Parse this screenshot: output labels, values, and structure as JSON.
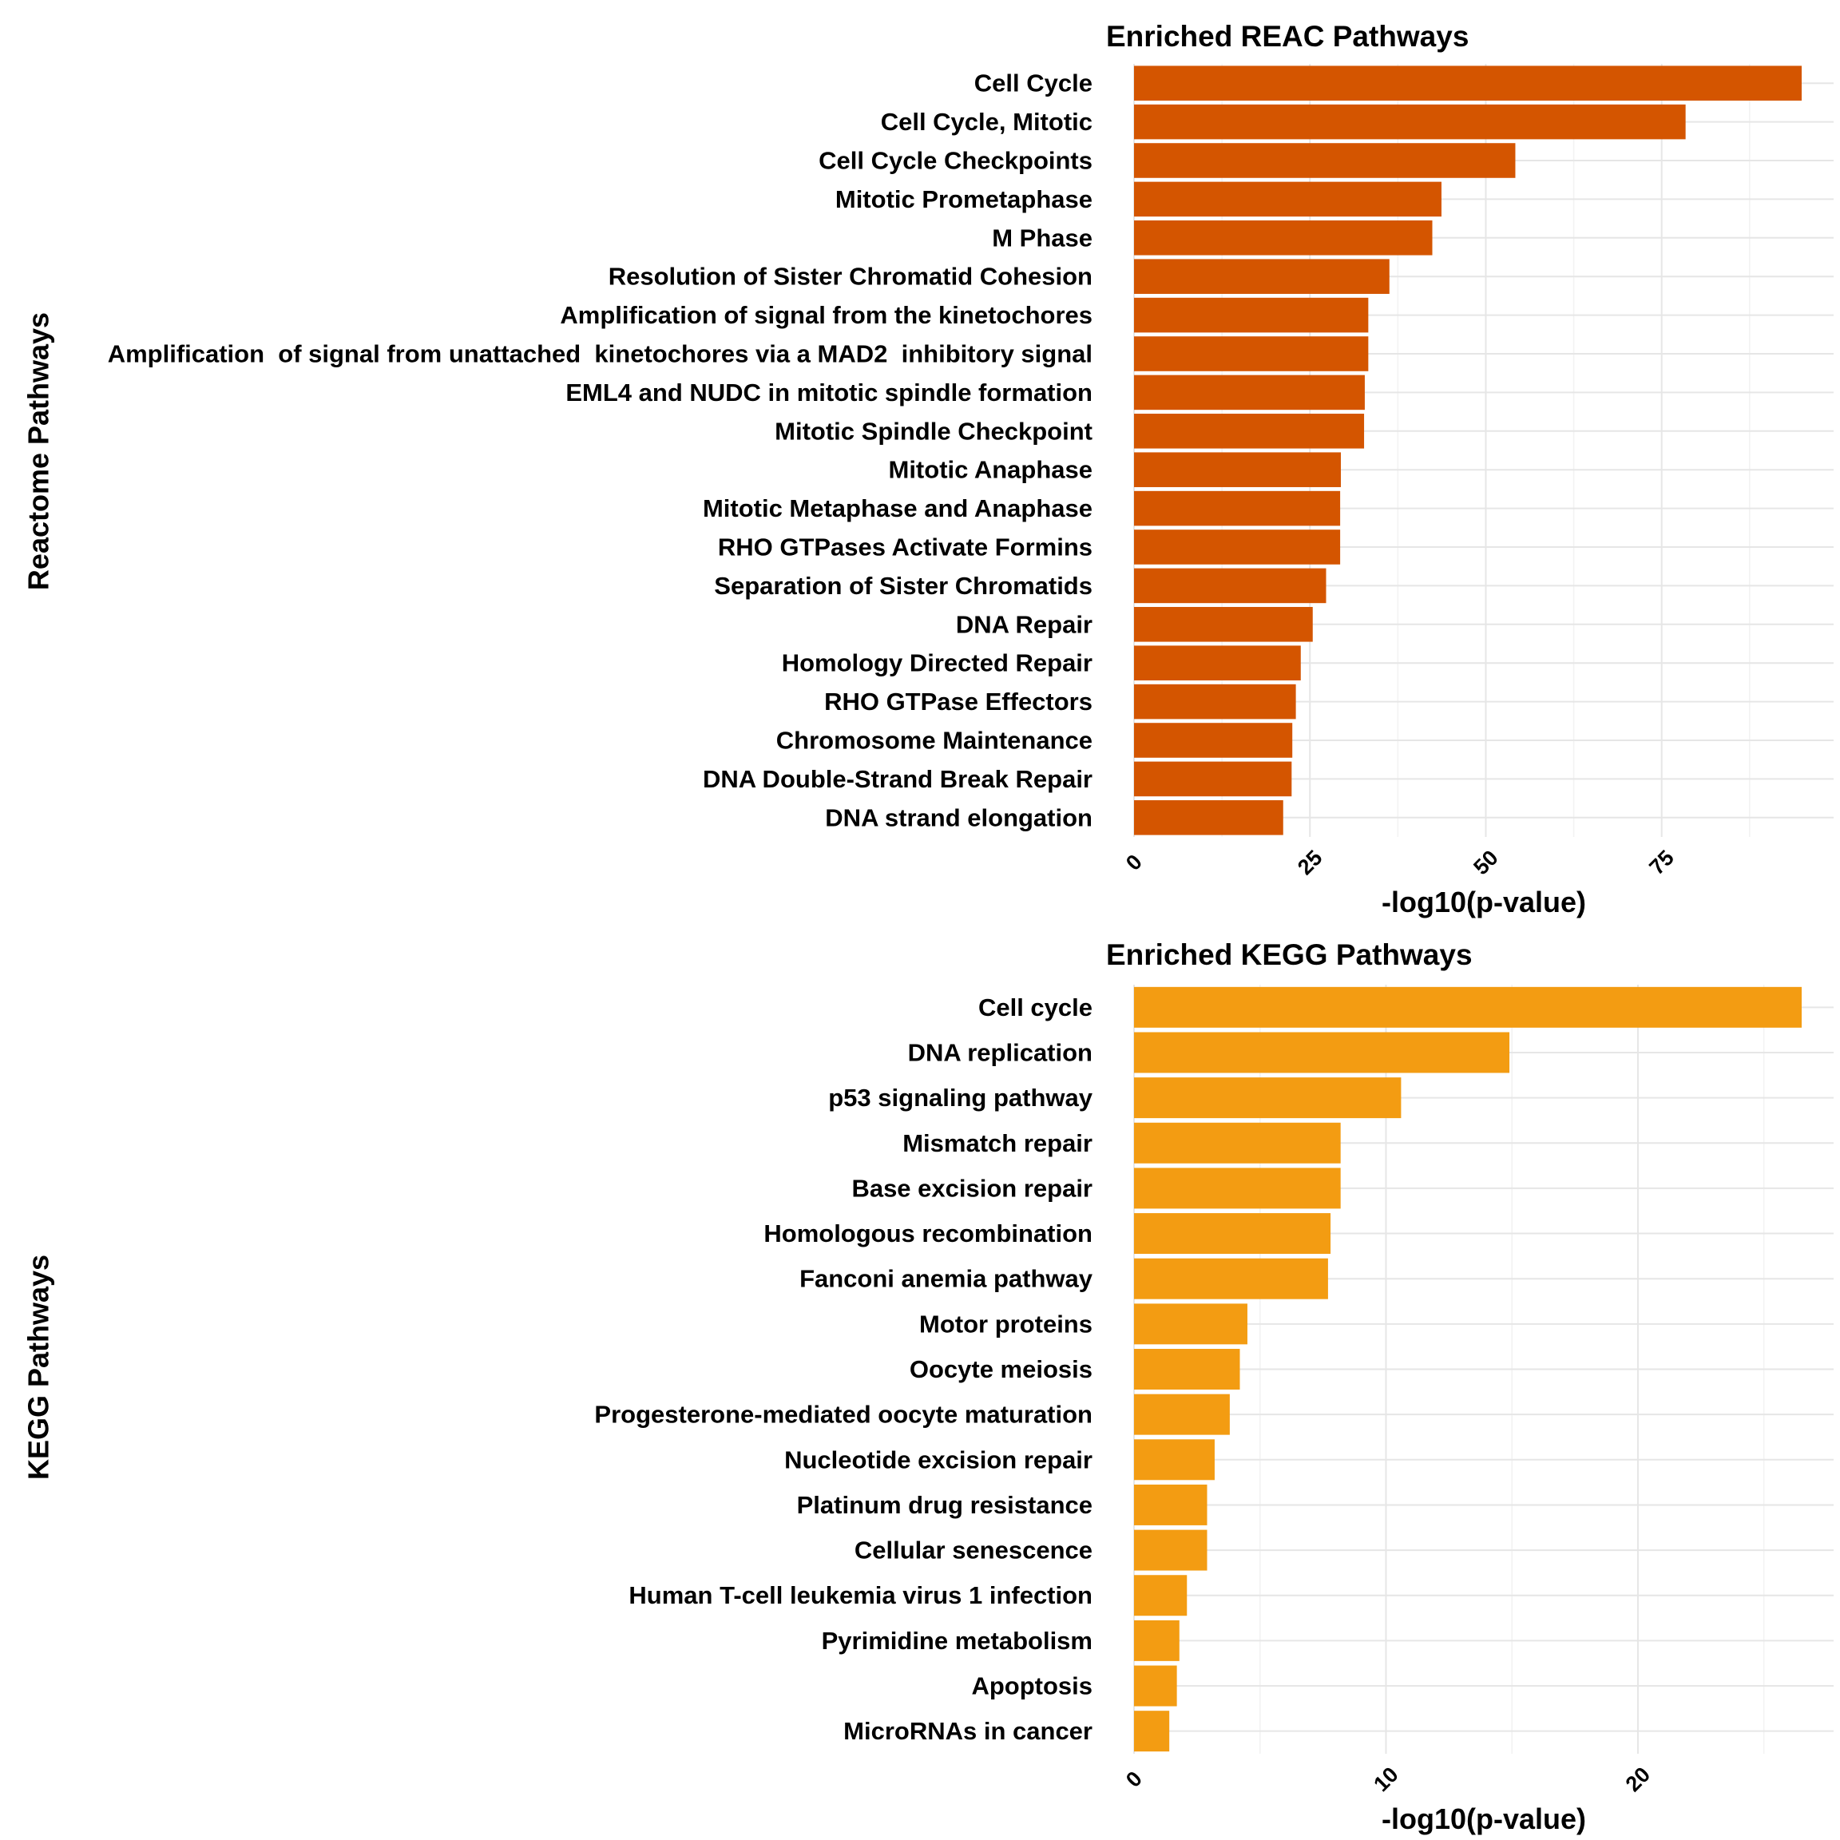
{
  "chart_data": [
    {
      "type": "bar",
      "orientation": "horizontal",
      "title": "Enriched REAC Pathways",
      "xlabel": "-log10(p-value)",
      "ylabel": "Reactome Pathways",
      "bar_color": "#D45500",
      "xlim": [
        0,
        96
      ],
      "xticks": [
        0,
        25,
        50,
        75
      ],
      "grid": true,
      "categories": [
        "Cell Cycle",
        "Cell Cycle, Mitotic",
        "Cell Cycle Checkpoints",
        "Mitotic Prometaphase",
        "M Phase",
        "Resolution of Sister Chromatid Cohesion",
        "Amplification of signal from the kinetochores",
        "Amplification  of signal from unattached  kinetochores via a MAD2  inhibitory signal",
        "EML4 and NUDC in mitotic spindle formation",
        "Mitotic Spindle Checkpoint",
        "Mitotic Anaphase",
        "Mitotic Metaphase and Anaphase",
        "RHO GTPases Activate Formins",
        "Separation of Sister Chromatids",
        "DNA Repair",
        "Homology Directed Repair",
        "RHO GTPase Effectors",
        "Chromosome Maintenance",
        "DNA Double-Strand Break Repair",
        "DNA strand elongation"
      ],
      "values": [
        94.9,
        78.4,
        54.2,
        43.7,
        42.4,
        36.3,
        33.3,
        33.3,
        32.8,
        32.7,
        29.4,
        29.3,
        29.3,
        27.3,
        25.4,
        23.7,
        23.0,
        22.5,
        22.4,
        21.2
      ]
    },
    {
      "type": "bar",
      "orientation": "horizontal",
      "title": "Enriched KEGG Pathways",
      "xlabel": "-log10(p-value)",
      "ylabel": "KEGG Pathways",
      "bar_color": "#F39C12",
      "xlim": [
        0,
        27.5
      ],
      "xticks": [
        0,
        10,
        20
      ],
      "grid": true,
      "categories": [
        "Cell cycle",
        "DNA replication",
        "p53 signaling pathway",
        "Mismatch repair",
        "Base excision repair",
        "Homologous recombination",
        "Fanconi anemia pathway",
        "Motor proteins",
        "Oocyte meiosis",
        "Progesterone-mediated oocyte maturation",
        "Nucleotide excision repair",
        "Platinum drug resistance",
        "Cellular senescence",
        "Human T-cell leukemia virus 1 infection",
        "Pyrimidine metabolism",
        "Apoptosis",
        "MicroRNAs in cancer"
      ],
      "values": [
        26.5,
        14.9,
        10.6,
        8.2,
        8.2,
        7.8,
        7.7,
        4.5,
        4.2,
        3.8,
        3.2,
        2.9,
        2.9,
        2.1,
        1.8,
        1.7,
        1.4
      ]
    }
  ]
}
